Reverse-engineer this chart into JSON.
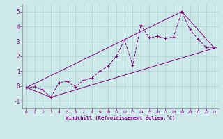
{
  "xlabel": "Windchill (Refroidissement éolien,°C)",
  "bg_color": "#cce8e8",
  "line_color": "#800080",
  "xlim": [
    -0.5,
    23.5
  ],
  "ylim": [
    -1.5,
    5.5
  ],
  "yticks": [
    -1,
    0,
    1,
    2,
    3,
    4,
    5
  ],
  "xticks": [
    0,
    1,
    2,
    3,
    4,
    5,
    6,
    7,
    8,
    9,
    10,
    11,
    12,
    13,
    14,
    15,
    16,
    17,
    18,
    19,
    20,
    21,
    22,
    23
  ],
  "series1_x": [
    0,
    1,
    2,
    3,
    4,
    5,
    6,
    7,
    8,
    9,
    10,
    11,
    12,
    13,
    14,
    15,
    16,
    17,
    18,
    19,
    20,
    21,
    22,
    23
  ],
  "series1_y": [
    -0.1,
    -0.05,
    -0.25,
    -0.75,
    0.25,
    0.3,
    -0.05,
    0.4,
    0.55,
    1.0,
    1.35,
    2.0,
    3.1,
    1.4,
    4.1,
    3.25,
    3.35,
    3.2,
    3.3,
    5.0,
    3.8,
    3.15,
    2.6,
    2.6
  ],
  "series2_x": [
    0,
    3,
    23
  ],
  "series2_y": [
    -0.1,
    -0.75,
    2.55
  ],
  "series3_x": [
    0,
    19,
    23
  ],
  "series3_y": [
    -0.1,
    5.0,
    2.55
  ],
  "grid_color": "#aad0d0",
  "spine_color": "#888888"
}
